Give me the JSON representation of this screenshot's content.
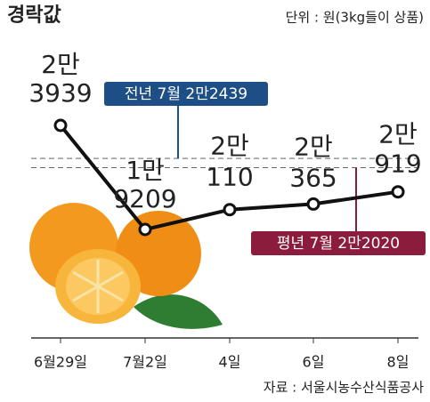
{
  "chart_data": {
    "type": "line",
    "title": "경락값",
    "subtitle": "단위 : 원(3kg들이 상품)",
    "source": "자료 : 서울시농수산식품공사",
    "categories": [
      "6월29일",
      "7월2일",
      "4일",
      "6일",
      "8일"
    ],
    "values": [
      23939,
      19209,
      20110,
      20365,
      20919
    ],
    "value_labels": [
      [
        "2만",
        "3939"
      ],
      [
        "1만",
        "9209"
      ],
      [
        "2만",
        "110"
      ],
      [
        "2만",
        "365"
      ],
      [
        "2만",
        "919"
      ]
    ],
    "color": "#111111",
    "reference_lines": [
      {
        "label": "전년 7월 2만2439",
        "value": 22439,
        "color": "#1d4f86"
      },
      {
        "label": "평년 7월 2만2020",
        "value": 22020,
        "color": "#8c1c3c"
      }
    ]
  }
}
